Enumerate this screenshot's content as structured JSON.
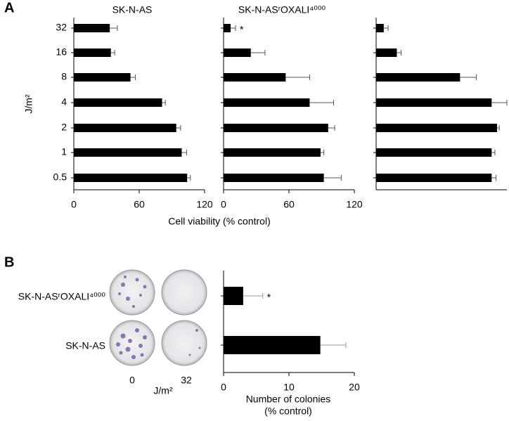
{
  "chart_data": [
    {
      "type": "hbar",
      "panel_label": "A",
      "title": "SK-N-AS",
      "ylabel": "J/m²",
      "xlabel": "Cell viability (% control)",
      "categories": [
        "32",
        "16",
        "8",
        "4",
        "2",
        "1",
        "0.5"
      ],
      "values": [
        33,
        34,
        52,
        81,
        94,
        99,
        104
      ],
      "errors": [
        7,
        3.5,
        4.5,
        3,
        4,
        4.5,
        3
      ],
      "color": "#000000",
      "error_color": "#555555",
      "xlim": [
        0,
        120
      ],
      "xticks": [
        0,
        60,
        120
      ]
    },
    {
      "type": "hbar",
      "title": "SK-N-ASʳOXALI⁴⁰⁰⁰",
      "values": [
        6.5,
        25,
        57,
        79,
        96,
        89,
        92
      ],
      "errors": [
        4.5,
        13,
        22,
        22,
        6,
        3,
        16
      ],
      "color": "#000000",
      "error_color": "#555555",
      "xlim": [
        0,
        120
      ],
      "xticks": [
        0,
        60,
        120
      ],
      "annotations": [
        {
          "text": "*",
          "index": 0
        }
      ]
    },
    {
      "type": "hbar",
      "values": [
        7,
        19,
        77,
        106,
        111,
        106,
        106
      ],
      "errors": [
        4,
        4,
        15,
        14,
        2,
        3,
        4
      ],
      "color": "#000000",
      "error_color": "#555555",
      "xlim": [
        0,
        120
      ]
    },
    {
      "type": "hbar",
      "panel_label": "B",
      "xlabel": [
        "Number of colonies",
        "(% control)"
      ],
      "categories": [
        "SK-N-ASʳOXALI⁴⁰⁰⁰",
        "SK-N-AS"
      ],
      "image_labels": [
        "0",
        "32"
      ],
      "image_axis_label": "J/m²",
      "values": [
        3,
        14.8
      ],
      "errors": [
        3,
        3.9
      ],
      "color": "#000000",
      "error_color": "#999999",
      "xlim": [
        0,
        20
      ],
      "xticks": [
        0,
        10,
        20
      ],
      "annotations": [
        {
          "text": "*",
          "index": 0
        }
      ]
    }
  ]
}
